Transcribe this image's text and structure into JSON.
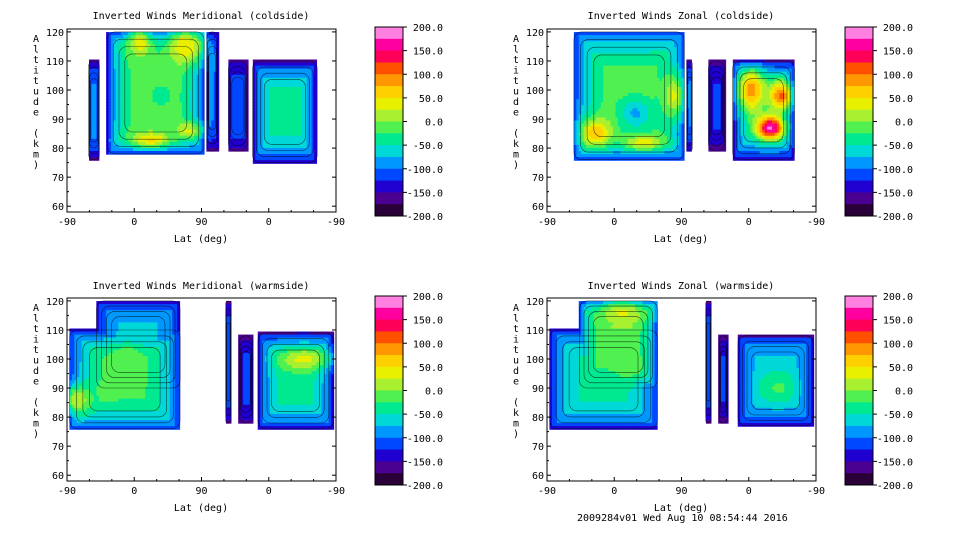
{
  "footer": "2009284v01 Wed Aug 10 08:54:44 2016",
  "chart_data": [
    {
      "type": "heatmap",
      "title": "Inverted Winds Meridional (coldside)",
      "xlabel": "Lat (deg)",
      "ylabel": "Altitude (km)",
      "x_tick_labels": [
        "-90",
        "0",
        "90",
        "0",
        "-90"
      ],
      "y_ticks": [
        60,
        70,
        80,
        90,
        100,
        110,
        120
      ],
      "ylim": [
        58,
        121
      ],
      "colorbar_ticks": [
        "200.0",
        "150.0",
        "100.0",
        "50.0",
        "0.0",
        "-50.0",
        "-100.0",
        "-150.0",
        "-200.0"
      ],
      "blobs": [
        {
          "x": [
            0.08,
            0.12
          ],
          "y": [
            76,
            110
          ],
          "base": -170,
          "peak": -90
        },
        {
          "x": [
            0.15,
            0.51
          ],
          "y": [
            78,
            120
          ],
          "base": -150,
          "peak": -10
        },
        {
          "x": [
            0.52,
            0.56
          ],
          "y": [
            79,
            120
          ],
          "base": -170,
          "peak": -95
        },
        {
          "x": [
            0.6,
            0.67
          ],
          "y": [
            79,
            110
          ],
          "base": -175,
          "peak": -105
        },
        {
          "x": [
            0.69,
            0.93
          ],
          "y": [
            75,
            110
          ],
          "base": -175,
          "peak": -40
        }
      ],
      "features": [
        {
          "x": 0.27,
          "y": 116,
          "r": 0.05,
          "ry": 5,
          "v": 40
        },
        {
          "x": 0.44,
          "y": 115,
          "r": 0.07,
          "ry": 6,
          "v": 50
        },
        {
          "x": 0.31,
          "y": 83,
          "r": 0.08,
          "ry": 3,
          "v": 55
        },
        {
          "x": 0.45,
          "y": 86,
          "r": 0.05,
          "ry": 3,
          "v": 30
        },
        {
          "x": 0.35,
          "y": 98,
          "r": 0.06,
          "ry": 6,
          "v": -30
        }
      ]
    },
    {
      "type": "heatmap",
      "title": "Inverted Winds Zonal (coldside)",
      "xlabel": "Lat (deg)",
      "ylabel": "Altitude (km)",
      "x_tick_labels": [
        "-90",
        "0",
        "90",
        "0",
        "-90"
      ],
      "y_ticks": [
        60,
        70,
        80,
        90,
        100,
        110,
        120
      ],
      "ylim": [
        58,
        121
      ],
      "colorbar_ticks": [
        "200.0",
        "150.0",
        "100.0",
        "50.0",
        "0.0",
        "-50.0",
        "-100.0",
        "-150.0",
        "-200.0"
      ],
      "blobs": [
        {
          "x": [
            0.1,
            0.51
          ],
          "y": [
            76,
            120
          ],
          "base": -150,
          "peak": -15
        },
        {
          "x": [
            0.52,
            0.54
          ],
          "y": [
            79,
            110
          ],
          "base": -170,
          "peak": -100
        },
        {
          "x": [
            0.6,
            0.66
          ],
          "y": [
            79,
            110
          ],
          "base": -175,
          "peak": -120
        },
        {
          "x": [
            0.69,
            0.92
          ],
          "y": [
            76,
            110
          ],
          "base": -170,
          "peak": -40
        }
      ],
      "features": [
        {
          "x": 0.18,
          "y": 85,
          "r": 0.06,
          "ry": 5,
          "v": 70
        },
        {
          "x": 0.36,
          "y": 82,
          "r": 0.08,
          "ry": 3,
          "v": 40
        },
        {
          "x": 0.47,
          "y": 98,
          "r": 0.04,
          "ry": 8,
          "v": 30
        },
        {
          "x": 0.33,
          "y": 92,
          "r": 0.06,
          "ry": 5,
          "v": -80
        },
        {
          "x": 0.76,
          "y": 100,
          "r": 0.05,
          "ry": 7,
          "v": 90
        },
        {
          "x": 0.83,
          "y": 87,
          "r": 0.05,
          "ry": 4,
          "v": 180
        },
        {
          "x": 0.87,
          "y": 98,
          "r": 0.04,
          "ry": 5,
          "v": 110
        }
      ]
    },
    {
      "type": "heatmap",
      "title": "Inverted Winds Meridional (warmside)",
      "xlabel": "Lat (deg)",
      "ylabel": "Altitude (km)",
      "x_tick_labels": [
        "-90",
        "0",
        "90",
        "0",
        "-90"
      ],
      "y_ticks": [
        60,
        70,
        80,
        90,
        100,
        110,
        120
      ],
      "ylim": [
        58,
        121
      ],
      "colorbar_ticks": [
        "200.0",
        "150.0",
        "100.0",
        "50.0",
        "0.0",
        "-50.0",
        "-100.0",
        "-150.0",
        "-200.0"
      ],
      "blobs": [
        {
          "x": [
            0.01,
            0.42
          ],
          "y": [
            76,
            110
          ],
          "base": -150,
          "peak": -25
        },
        {
          "x": [
            0.11,
            0.42
          ],
          "y": [
            90,
            120
          ],
          "base": -150,
          "peak": -70
        },
        {
          "x": [
            0.59,
            0.61
          ],
          "y": [
            78,
            120
          ],
          "base": -170,
          "peak": -100
        },
        {
          "x": [
            0.64,
            0.69
          ],
          "y": [
            78,
            108
          ],
          "base": -175,
          "peak": -115
        },
        {
          "x": [
            0.71,
            0.99
          ],
          "y": [
            76,
            109
          ],
          "base": -165,
          "peak": -40
        }
      ],
      "features": [
        {
          "x": 0.04,
          "y": 86,
          "r": 0.05,
          "ry": 5,
          "v": 25
        },
        {
          "x": 0.22,
          "y": 100,
          "r": 0.06,
          "ry": 5,
          "v": 0
        },
        {
          "x": 0.16,
          "y": 90,
          "r": 0.05,
          "ry": 4,
          "v": -15
        },
        {
          "x": 0.88,
          "y": 100,
          "r": 0.09,
          "ry": 4,
          "v": 35
        }
      ]
    },
    {
      "type": "heatmap",
      "title": "Inverted Winds Zonal (warmside)",
      "xlabel": "Lat (deg)",
      "ylabel": "Altitude (km)",
      "x_tick_labels": [
        "-90",
        "0",
        "90",
        "0",
        "-90"
      ],
      "y_ticks": [
        60,
        70,
        80,
        90,
        100,
        110,
        120
      ],
      "ylim": [
        58,
        121
      ],
      "colorbar_ticks": [
        "200.0",
        "150.0",
        "100.0",
        "50.0",
        "0.0",
        "-50.0",
        "-100.0",
        "-150.0",
        "-200.0"
      ],
      "blobs": [
        {
          "x": [
            0.01,
            0.41
          ],
          "y": [
            76,
            110
          ],
          "base": -150,
          "peak": -45
        },
        {
          "x": [
            0.12,
            0.41
          ],
          "y": [
            90,
            120
          ],
          "base": -150,
          "peak": -5
        },
        {
          "x": [
            0.59,
            0.61
          ],
          "y": [
            78,
            120
          ],
          "base": -170,
          "peak": -105
        },
        {
          "x": [
            0.64,
            0.67
          ],
          "y": [
            78,
            108
          ],
          "base": -175,
          "peak": -120
        },
        {
          "x": [
            0.71,
            0.99
          ],
          "y": [
            77,
            108
          ],
          "base": -165,
          "peak": -60
        }
      ],
      "features": [
        {
          "x": 0.28,
          "y": 116,
          "r": 0.09,
          "ry": 4,
          "v": 30
        },
        {
          "x": 0.3,
          "y": 97,
          "r": 0.05,
          "ry": 5,
          "v": -10
        },
        {
          "x": 0.86,
          "y": 90,
          "r": 0.06,
          "ry": 5,
          "v": -20
        }
      ]
    }
  ]
}
